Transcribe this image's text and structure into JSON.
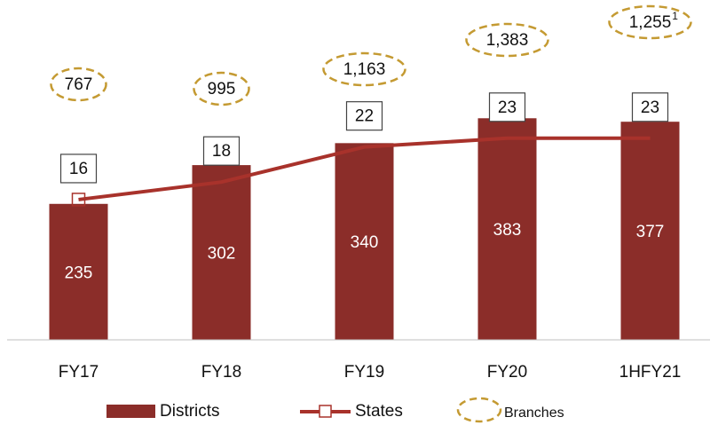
{
  "chart_data": {
    "type": "bar",
    "categories": [
      "FY17",
      "FY18",
      "FY19",
      "FY20",
      "1HFY21"
    ],
    "ylim": [
      0,
      500
    ],
    "y2lim": [
      0,
      33
    ],
    "series": [
      {
        "name": "Districts",
        "type": "bar",
        "color": "#8b2d29",
        "values": [
          235,
          302,
          340,
          383,
          377
        ]
      },
      {
        "name": "States",
        "type": "line",
        "axis": "y2",
        "color": "#a8322b",
        "values": [
          16,
          18,
          22,
          23,
          23
        ]
      },
      {
        "name": "Branches",
        "type": "annotation",
        "color": "#c49a32",
        "values": [
          767,
          995,
          1163,
          1383,
          1255
        ],
        "value_labels": [
          "767",
          "995",
          "1,163",
          "1,383",
          "1,255"
        ],
        "footnotes": [
          null,
          null,
          null,
          null,
          "1"
        ]
      }
    ]
  }
}
